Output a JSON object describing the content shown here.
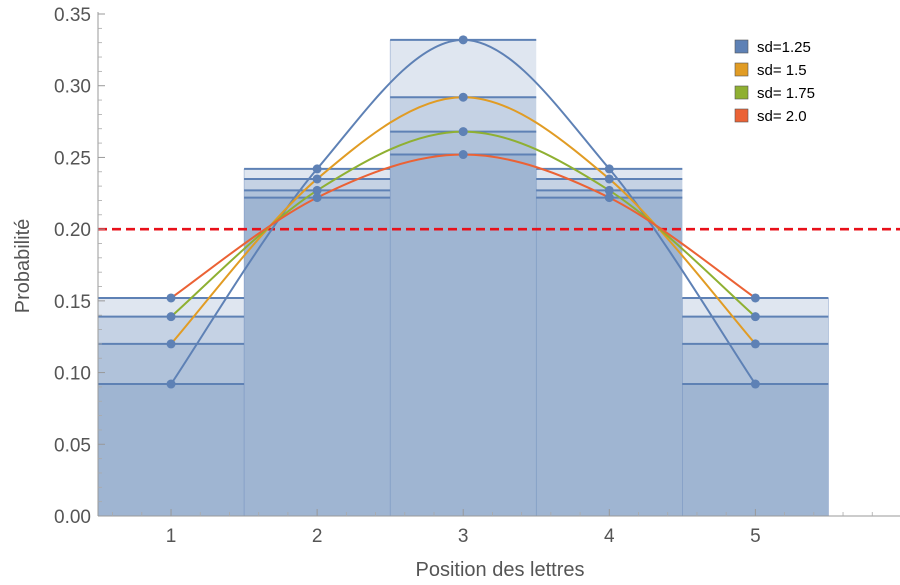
{
  "chart_data": {
    "type": "bar",
    "title": "",
    "xlabel": "Position des lettres",
    "ylabel": "Probabilité",
    "categories": [
      1,
      2,
      3,
      4,
      5
    ],
    "xlim": [
      0.5,
      5.99
    ],
    "ylim": [
      0,
      0.35
    ],
    "x_ticks": [
      "1",
      "2",
      "3",
      "4",
      "5"
    ],
    "y_ticks": [
      "0.00",
      "0.05",
      "0.10",
      "0.15",
      "0.20",
      "0.25",
      "0.30",
      "0.35"
    ],
    "reference_line": {
      "y": 0.2,
      "color": "#e8101a",
      "style": "dashed"
    },
    "legend_position": "top-right",
    "series": [
      {
        "name": "sd=1.25",
        "color": "#5e81b5",
        "values": [
          0.092,
          0.242,
          0.332,
          0.242,
          0.092
        ]
      },
      {
        "name": "sd= 1.5",
        "color": "#e19c24",
        "values": [
          0.12,
          0.235,
          0.292,
          0.235,
          0.12
        ]
      },
      {
        "name": "sd= 1.75",
        "color": "#8fb032",
        "values": [
          0.139,
          0.227,
          0.268,
          0.227,
          0.139
        ]
      },
      {
        "name": "sd= 2.0",
        "color": "#eb6235",
        "values": [
          0.152,
          0.222,
          0.252,
          0.222,
          0.152
        ]
      }
    ],
    "bar_color": "#5e81b5",
    "grid": false
  }
}
